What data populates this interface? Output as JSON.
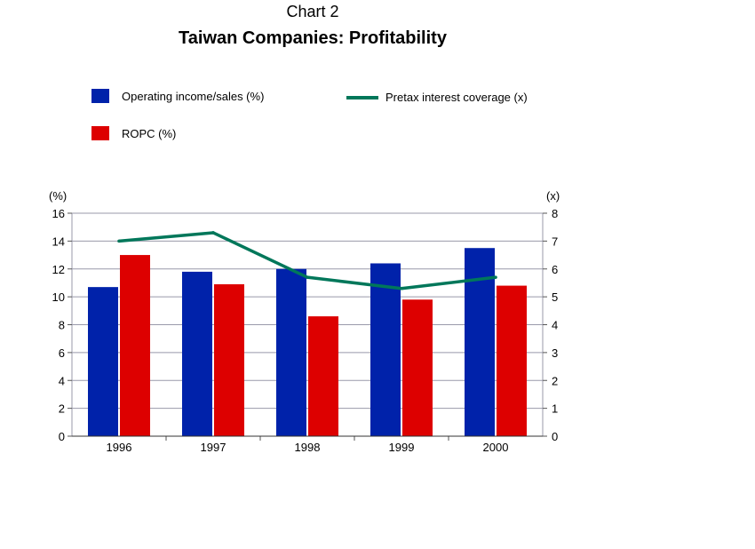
{
  "header": {
    "label": "Chart 2",
    "title": "Taiwan Companies: Profitability"
  },
  "chart_data": {
    "type": "bar",
    "categories": [
      "1996",
      "1997",
      "1998",
      "1999",
      "2000"
    ],
    "series": [
      {
        "name": "Operating income/sales (%)",
        "type": "bar",
        "axis": "left",
        "color": "#0022aa",
        "values": [
          10.7,
          11.8,
          12.0,
          12.4,
          13.5
        ]
      },
      {
        "name": "ROPC (%)",
        "type": "bar",
        "axis": "left",
        "color": "#dd0000",
        "values": [
          13.0,
          10.9,
          8.6,
          9.8,
          10.8
        ]
      },
      {
        "name": "Pretax interest coverage (x)",
        "type": "line",
        "axis": "right",
        "color": "#00775a",
        "values": [
          7.0,
          7.3,
          5.7,
          5.3,
          5.7
        ]
      }
    ],
    "y_left": {
      "label": "(%)",
      "min": 0,
      "max": 16,
      "ticks": [
        "0",
        "2",
        "4",
        "6",
        "8",
        "10",
        "12",
        "14",
        "16"
      ]
    },
    "y_right": {
      "label": "(x)",
      "min": 0,
      "max": 8,
      "ticks": [
        "0",
        "1",
        "2",
        "3",
        "4",
        "5",
        "6",
        "7",
        "8"
      ]
    },
    "grid": true,
    "legend_position": "top"
  }
}
